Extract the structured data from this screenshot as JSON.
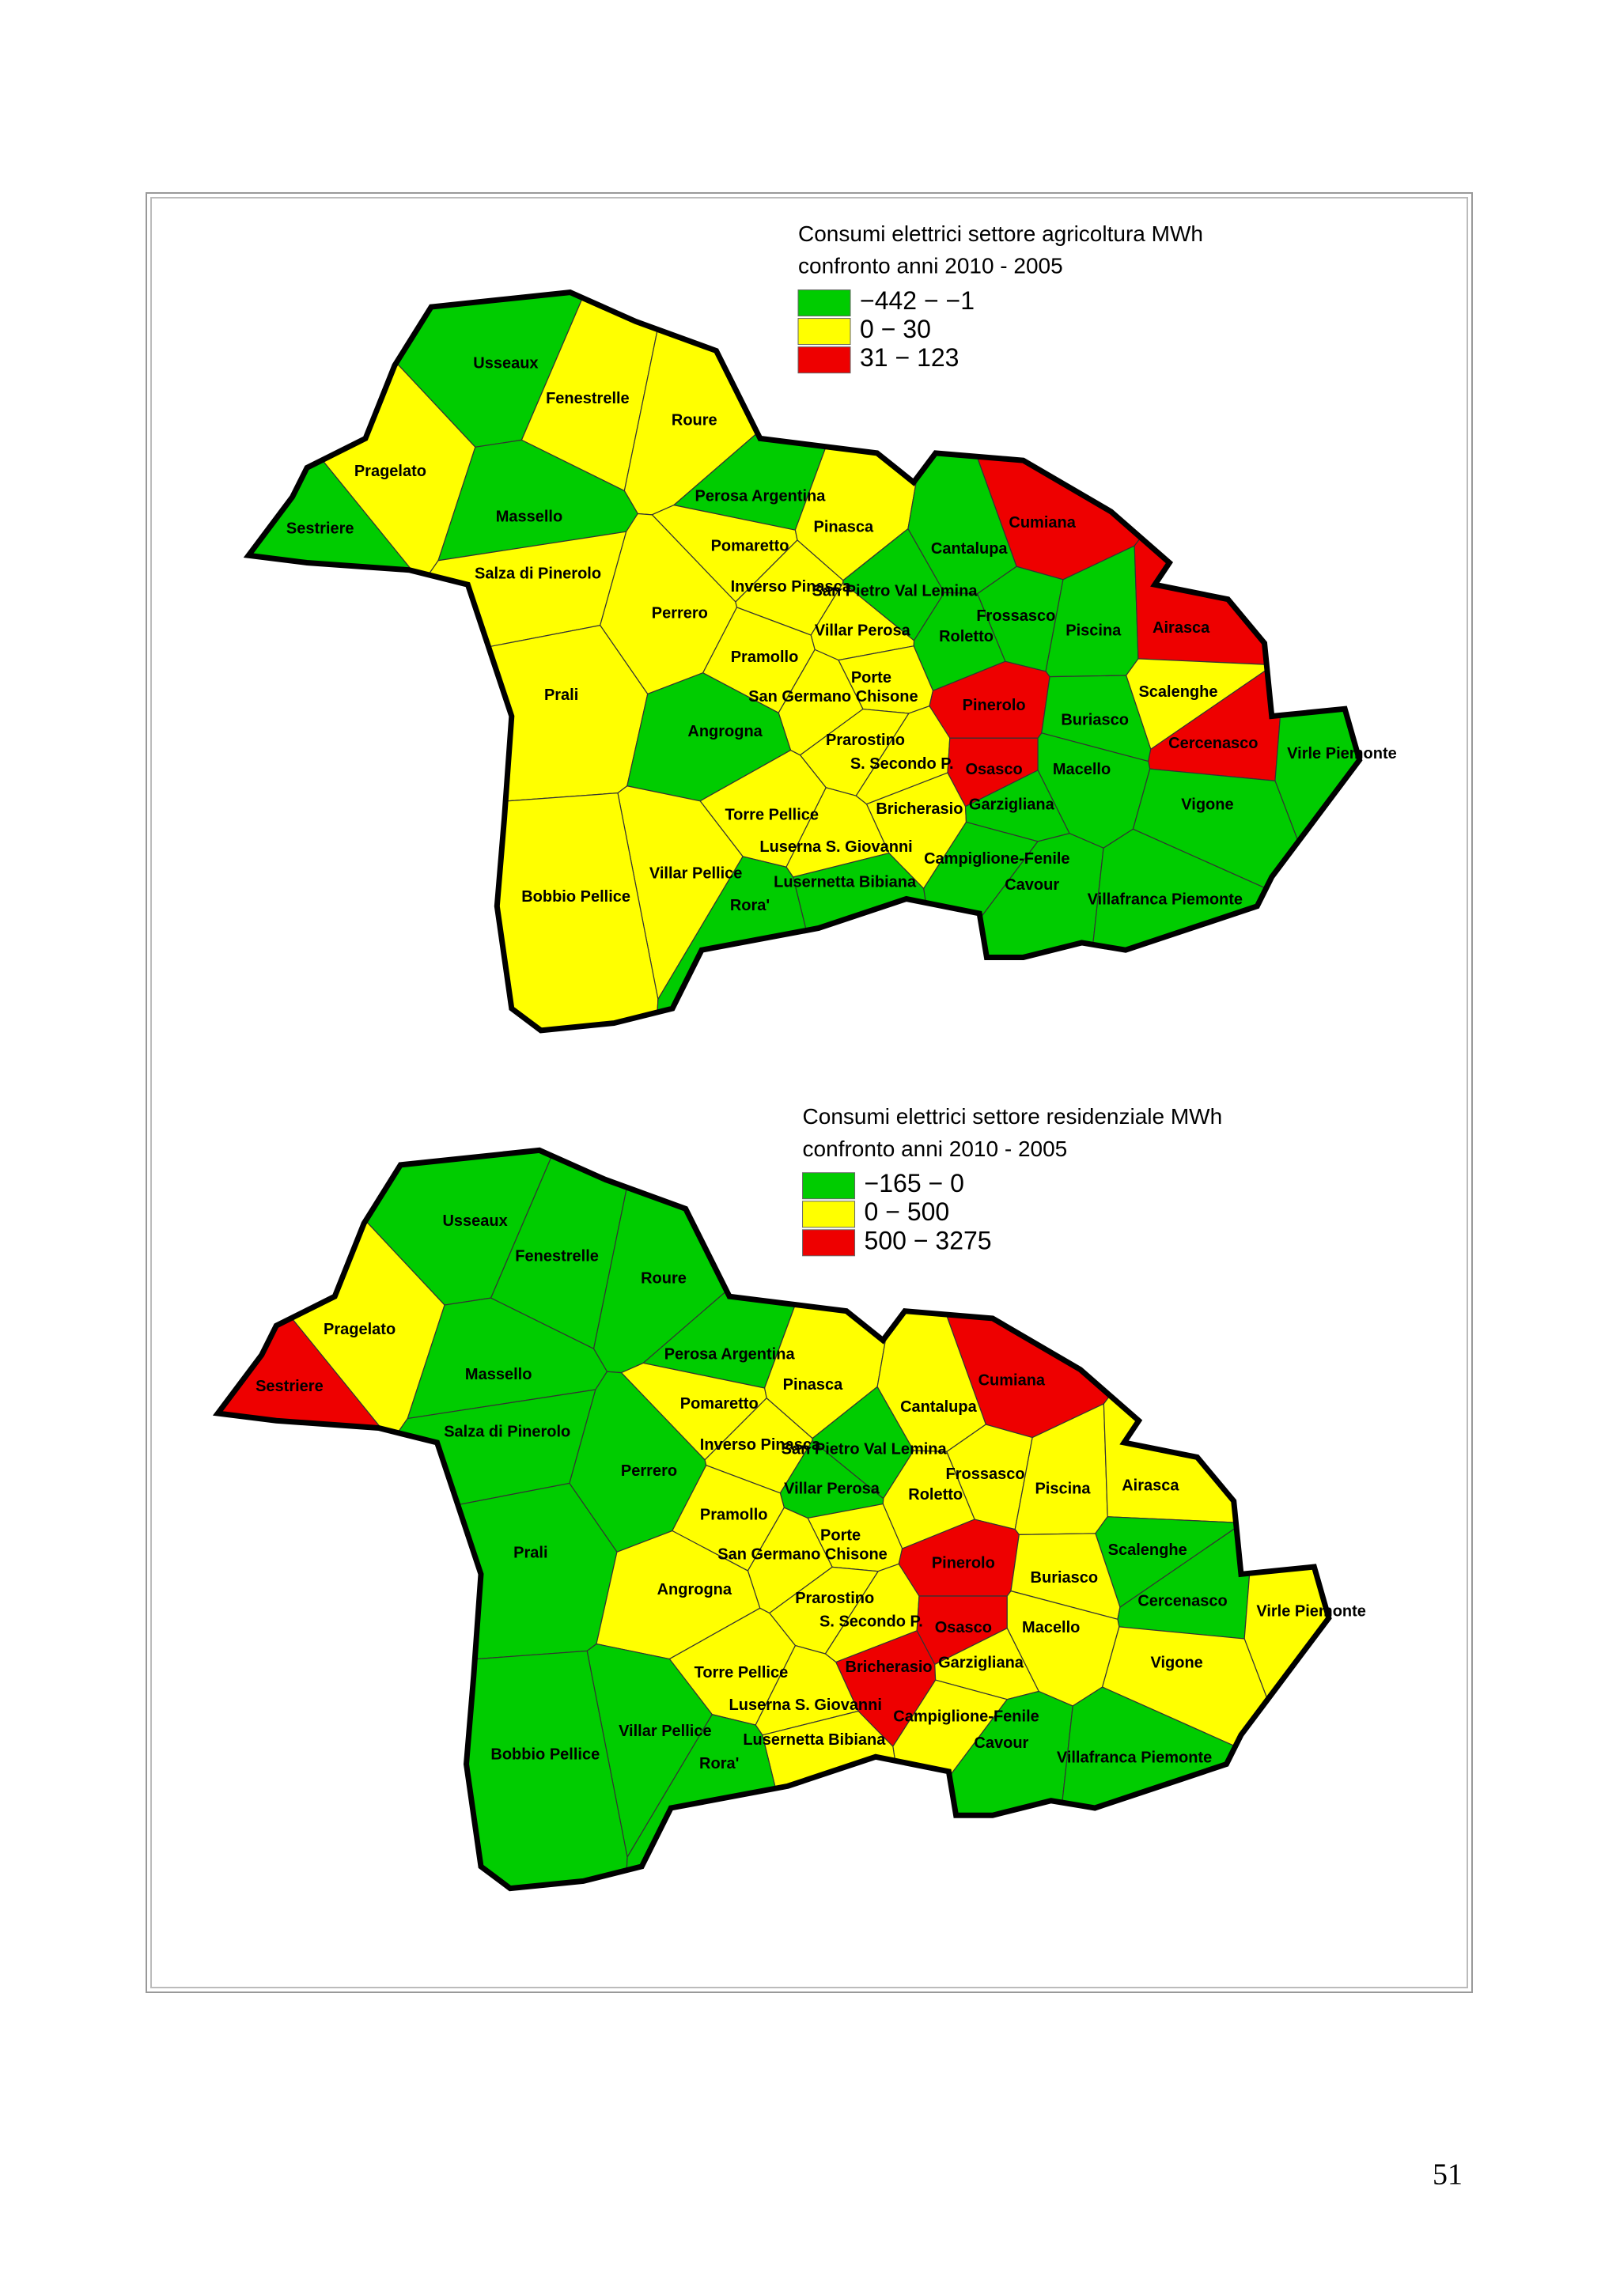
{
  "page_number": "51",
  "municipalities": [
    "Usseaux",
    "Fenestrelle",
    "Roure",
    "Pragelato",
    "Sestriere",
    "Massello",
    "Salza di Pinerolo",
    "Perosa Argentina",
    "Pinasca",
    "Pomaretto",
    "Perrero",
    "Inverso Pinasca",
    "San Pietro Val Lemina",
    "Cumiana",
    "Cantalupa",
    "Frossasco",
    "Roletto",
    "Piscina",
    "Airasca",
    "Villar Perosa",
    "Pramollo",
    "Porte",
    "San Germano Chisone",
    "Pinerolo",
    "Scalenghe",
    "Prali",
    "Angrogna",
    "Prarostino",
    "Buriasco",
    "Cercenasco",
    "Virle Piemonte",
    "S. Secondo P.",
    "Osasco",
    "Macello",
    "Torre Pellice",
    "Bricherasio",
    "Garzigliana",
    "Vigone",
    "Luserna S. Giovanni",
    "Campiglione-Fenile",
    "Villar Pellice",
    "Lusernetta Bibiana",
    "Cavour",
    "Bobbio Pellice",
    "Rora'",
    "Villafranca Piemonte"
  ],
  "maps": [
    {
      "title": [
        "Consumi elettrici settore agricoltura MWh",
        "confronto anni 2010 - 2005"
      ],
      "legend": [
        {
          "label": "−442 − −1",
          "color": "#00cc00"
        },
        {
          "label": "0 − 30",
          "color": "#ffff00"
        },
        {
          "label": "31 − 123",
          "color": "#ee0000"
        }
      ],
      "classes": [
        0,
        1,
        1,
        1,
        0,
        0,
        1,
        0,
        1,
        1,
        1,
        1,
        0,
        2,
        0,
        0,
        0,
        0,
        2,
        1,
        1,
        1,
        1,
        2,
        1,
        1,
        0,
        1,
        0,
        2,
        0,
        1,
        2,
        0,
        1,
        1,
        0,
        0,
        1,
        0,
        1,
        0,
        0,
        1,
        0,
        0
      ]
    },
    {
      "title": [
        "Consumi elettrici settore residenziale MWh",
        "confronto anni 2010 - 2005"
      ],
      "legend": [
        {
          "label": "−165 − 0",
          "color": "#00cc00"
        },
        {
          "label": "0 − 500",
          "color": "#ffff00"
        },
        {
          "label": "500 − 3275",
          "color": "#ee0000"
        }
      ],
      "classes": [
        0,
        0,
        0,
        1,
        2,
        0,
        0,
        0,
        1,
        1,
        0,
        1,
        0,
        2,
        1,
        1,
        1,
        1,
        1,
        0,
        1,
        1,
        1,
        2,
        0,
        0,
        1,
        1,
        1,
        0,
        1,
        1,
        2,
        1,
        1,
        2,
        1,
        1,
        1,
        1,
        0,
        1,
        0,
        0,
        0,
        0
      ]
    }
  ]
}
